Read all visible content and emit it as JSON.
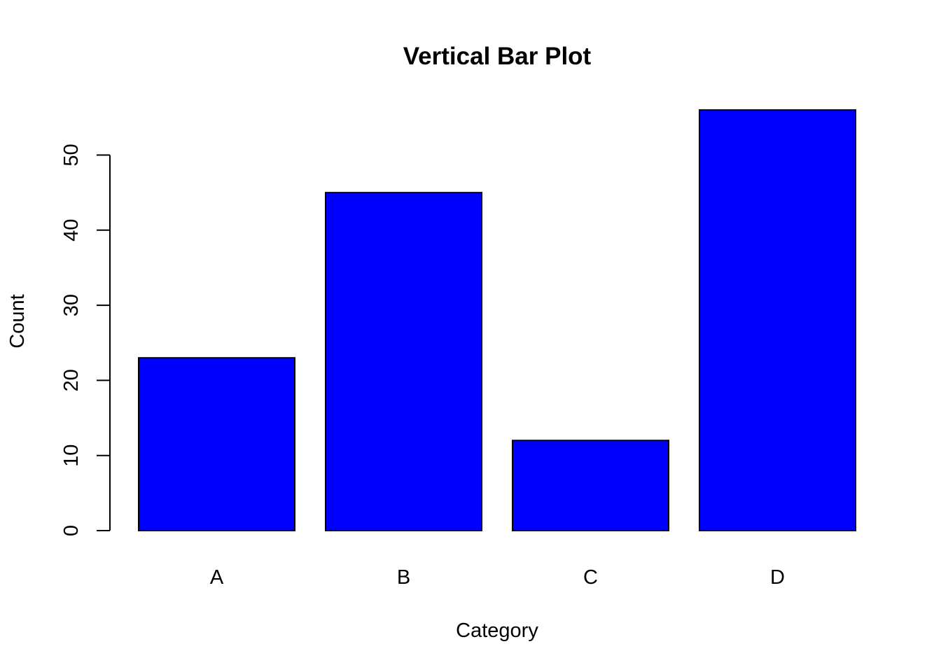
{
  "chart_data": {
    "type": "bar",
    "title": "Vertical Bar Plot",
    "xlabel": "Category",
    "ylabel": "Count",
    "categories": [
      "A",
      "B",
      "C",
      "D"
    ],
    "values": [
      23,
      45,
      12,
      56
    ],
    "ylim": [
      0,
      56
    ],
    "yticks": [
      "0",
      "10",
      "20",
      "30",
      "40",
      "50"
    ],
    "grid": false,
    "legend": "none",
    "bar_color": "#0000ff",
    "bar_border_color": "#000000"
  }
}
